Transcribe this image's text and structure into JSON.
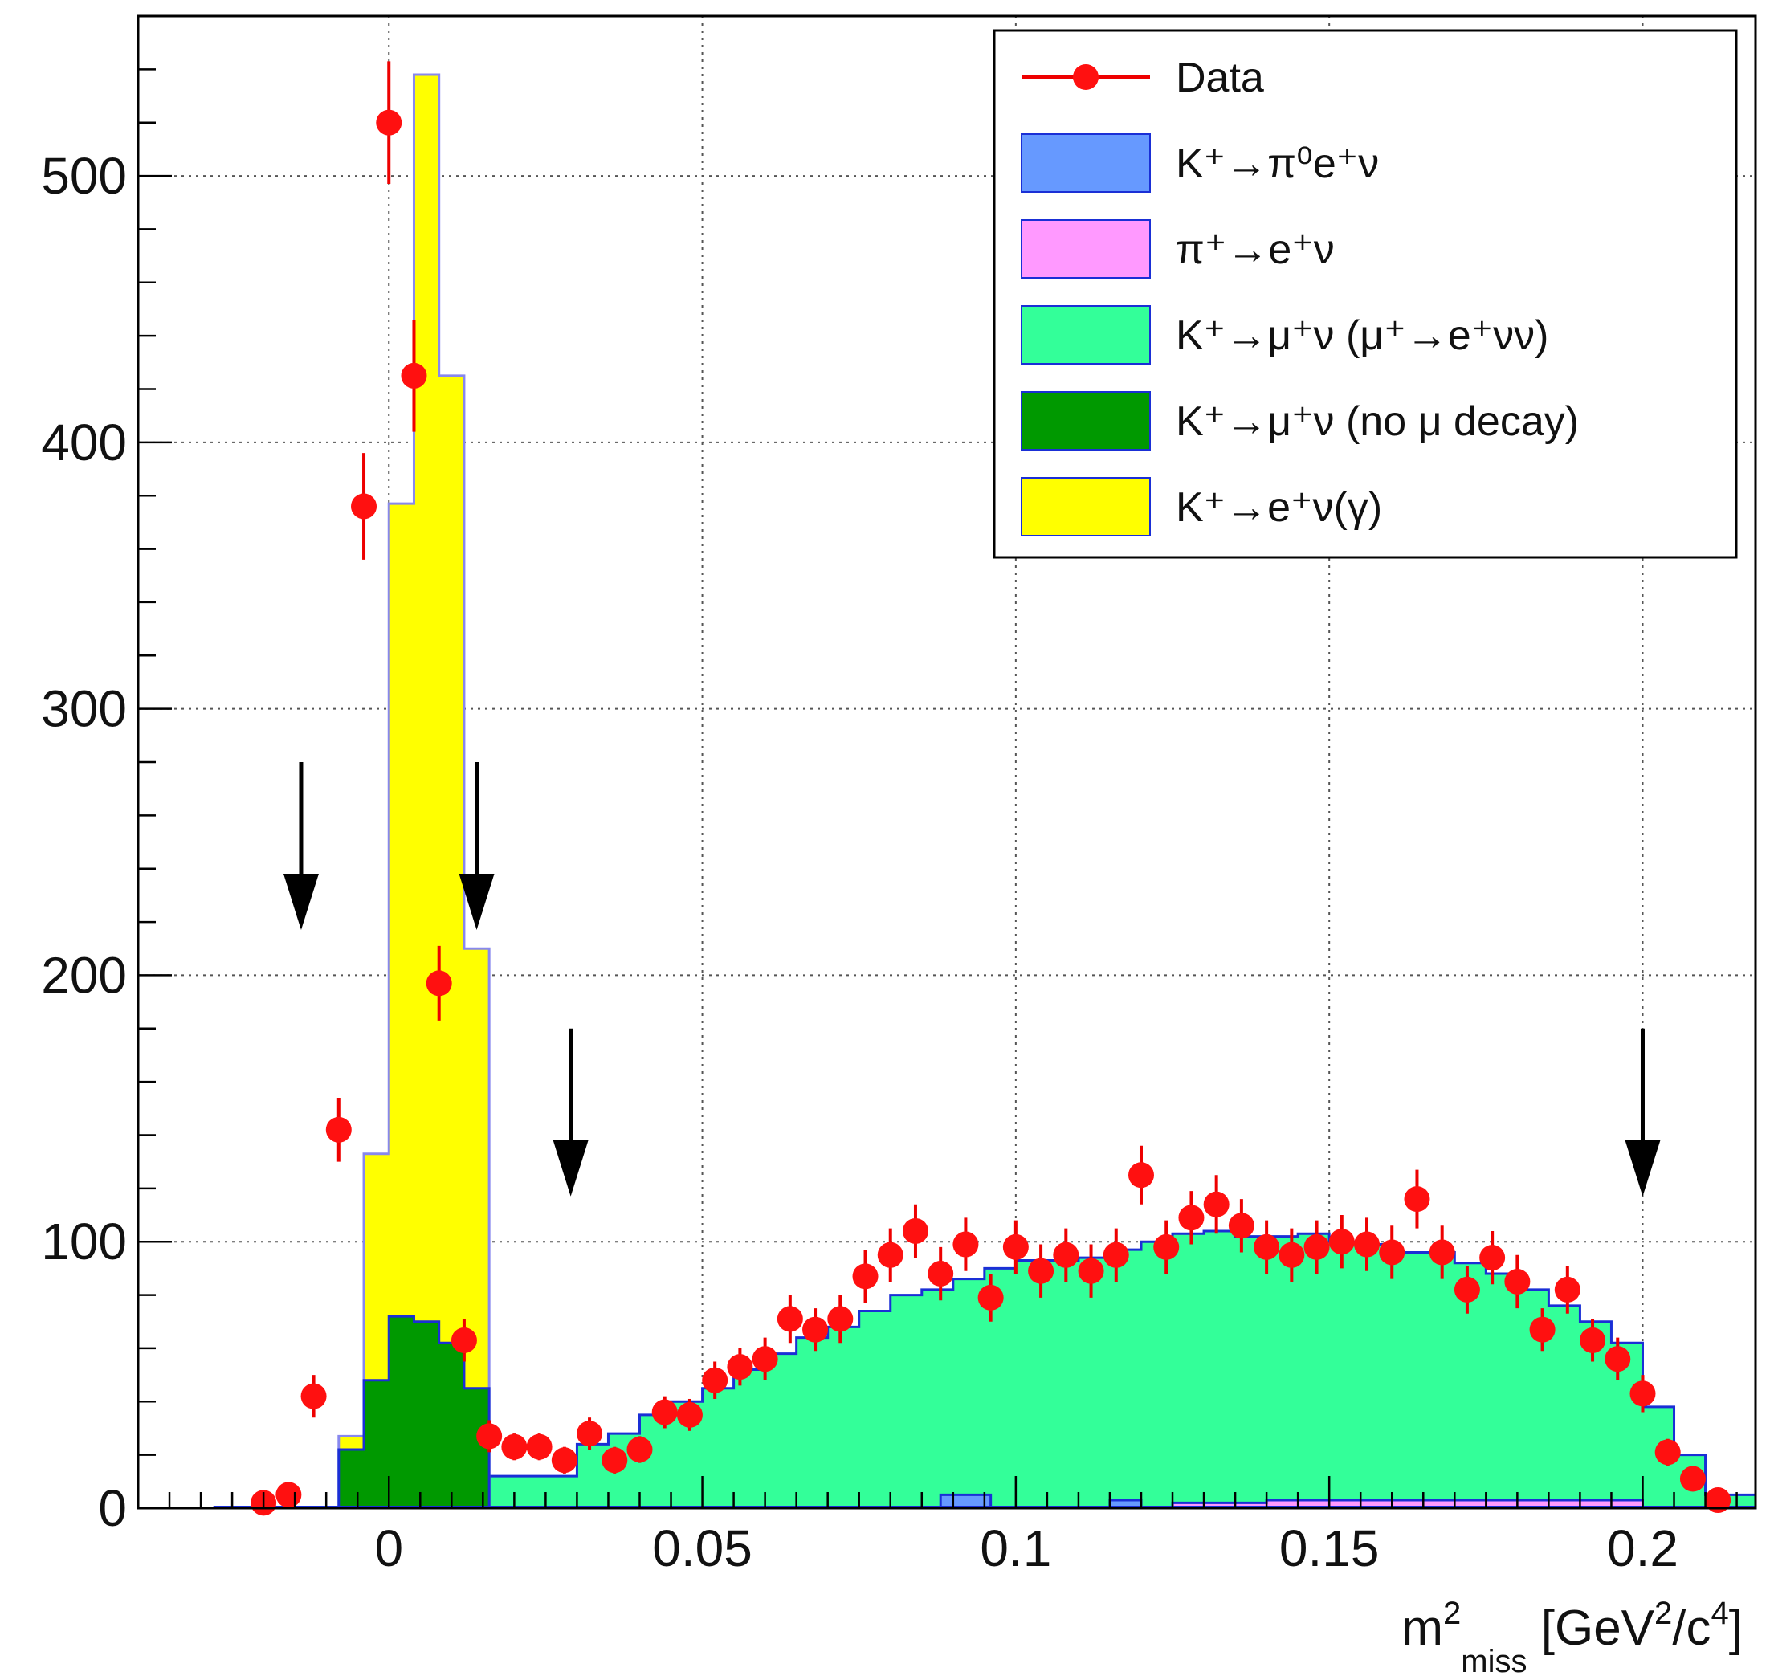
{
  "chart_data": {
    "type": "bar",
    "title": "",
    "xlabel": "m²miss [GeV²/c⁴]",
    "xlabel_parts": {
      "base": "m",
      "sup": "2",
      "sub": "miss",
      "unit_open": " [GeV",
      "unit_sup1": "2",
      "unit_mid": "/c",
      "unit_sup2": "4",
      "unit_close": "]"
    },
    "ylabel": "",
    "xlim": [
      -0.04,
      0.218
    ],
    "ylim": [
      0,
      560
    ],
    "grid": true,
    "legend_position": "top-right",
    "x_ticks": [
      {
        "value": 0,
        "label": "0"
      },
      {
        "value": 0.05,
        "label": "0.05"
      },
      {
        "value": 0.1,
        "label": "0.1"
      },
      {
        "value": 0.15,
        "label": "0.15"
      },
      {
        "value": 0.2,
        "label": "0.2"
      }
    ],
    "y_ticks": [
      {
        "value": 0,
        "label": "0"
      },
      {
        "value": 100,
        "label": "100"
      },
      {
        "value": 200,
        "label": "200"
      },
      {
        "value": 300,
        "label": "300"
      },
      {
        "value": 400,
        "label": "400"
      },
      {
        "value": 500,
        "label": "500"
      }
    ],
    "legend": [
      {
        "key": "data",
        "text": "Data",
        "color": "#ff0000",
        "style": "marker"
      },
      {
        "key": "k_pi0_e_nu",
        "text": "K⁺→π⁰e⁺ν",
        "color": "#6699ff",
        "style": "fill"
      },
      {
        "key": "pi_e_nu",
        "text": "π⁺→e⁺ν",
        "color": "#ff99ff",
        "style": "fill"
      },
      {
        "key": "k_mu_nu_decay",
        "text": "K⁺→μ⁺ν (μ⁺→e⁺νν)",
        "color": "#33ff99",
        "style": "fill"
      },
      {
        "key": "k_mu_nu_nodecay",
        "text": "K⁺→μ⁺ν (no μ decay)",
        "color": "#009900",
        "style": "fill"
      },
      {
        "key": "k_e_nu_gamma",
        "text": "K⁺→e⁺ν(γ)",
        "color": "#ffff00",
        "style": "fill"
      }
    ],
    "histograms": {
      "k_mu_nu_decay": {
        "x": [
          0.016,
          0.03,
          0.035,
          0.04,
          0.045,
          0.05,
          0.055,
          0.06,
          0.065,
          0.07,
          0.075,
          0.08,
          0.085,
          0.09,
          0.095,
          0.1,
          0.105,
          0.11,
          0.115,
          0.12,
          0.125,
          0.13,
          0.135,
          0.14,
          0.145,
          0.15,
          0.155,
          0.16,
          0.165,
          0.17,
          0.175,
          0.18,
          0.185,
          0.19,
          0.195,
          0.2,
          0.205,
          0.21,
          0.218
        ],
        "y": [
          12,
          24,
          28,
          35,
          40,
          45,
          52,
          58,
          64,
          68,
          74,
          80,
          82,
          86,
          90,
          93,
          93,
          94,
          97,
          100,
          103,
          104,
          102,
          102,
          103,
          100,
          99,
          96,
          96,
          92,
          88,
          82,
          76,
          70,
          62,
          38,
          20,
          5,
          0
        ]
      },
      "k_e_nu_gamma": {
        "x": [
          -0.016,
          -0.012,
          -0.008,
          -0.004,
          0.0,
          0.004,
          0.008,
          0.012,
          0.016
        ],
        "y": [
          0,
          0,
          27,
          133,
          377,
          538,
          425,
          210,
          35
        ]
      },
      "k_mu_nu_nodecay": {
        "x": [
          -0.012,
          -0.008,
          -0.004,
          0.0,
          0.004,
          0.008,
          0.012,
          0.016
        ],
        "y": [
          0,
          22,
          48,
          72,
          70,
          62,
          45,
          28
        ]
      },
      "k_pi0_e_nu": {
        "x": [
          0.088,
          0.096,
          0.104,
          0.115,
          0.12,
          0.125
        ],
        "y": [
          5,
          0,
          0,
          3,
          0,
          0
        ]
      },
      "pi_e_nu": {
        "x": [
          0.125,
          0.14,
          0.155,
          0.17,
          0.185,
          0.2
        ],
        "y": [
          2,
          3,
          3,
          3,
          3,
          2
        ]
      }
    },
    "data_points": {
      "x": [
        -0.02,
        -0.016,
        -0.012,
        -0.008,
        -0.004,
        0.0,
        0.004,
        0.008,
        0.012,
        0.016,
        0.02,
        0.024,
        0.028,
        0.032,
        0.036,
        0.04,
        0.044,
        0.048,
        0.052,
        0.056,
        0.06,
        0.064,
        0.068,
        0.072,
        0.076,
        0.08,
        0.084,
        0.088,
        0.092,
        0.096,
        0.1,
        0.104,
        0.108,
        0.112,
        0.116,
        0.12,
        0.124,
        0.128,
        0.132,
        0.136,
        0.14,
        0.144,
        0.148,
        0.152,
        0.156,
        0.16,
        0.164,
        0.168,
        0.172,
        0.176,
        0.18,
        0.184,
        0.188,
        0.192,
        0.196,
        0.2,
        0.204,
        0.208,
        0.212
      ],
      "y": [
        2,
        5,
        42,
        142,
        376,
        520,
        425,
        197,
        63,
        27,
        23,
        23,
        18,
        28,
        18,
        22,
        36,
        35,
        48,
        53,
        56,
        71,
        67,
        71,
        87,
        95,
        104,
        88,
        99,
        79,
        98,
        89,
        95,
        89,
        95,
        125,
        98,
        109,
        114,
        106,
        98,
        95,
        98,
        100,
        99,
        96,
        116,
        96,
        82,
        94,
        85,
        67,
        82,
        63,
        56,
        43,
        21,
        11,
        3
      ],
      "err": [
        2,
        3,
        8,
        12,
        20,
        23,
        21,
        14,
        8,
        6,
        5,
        5,
        5,
        6,
        5,
        5,
        6,
        6,
        7,
        7,
        8,
        9,
        8,
        9,
        10,
        10,
        10,
        10,
        10,
        9,
        10,
        10,
        10,
        10,
        10,
        11,
        10,
        10,
        11,
        10,
        10,
        10,
        10,
        10,
        10,
        10,
        11,
        10,
        9,
        10,
        10,
        8,
        9,
        8,
        8,
        7,
        5,
        4,
        2
      ]
    },
    "arrows": [
      {
        "x": -0.014,
        "y_top": 280,
        "y_tip": 217
      },
      {
        "x": 0.014,
        "y_top": 280,
        "y_tip": 217
      },
      {
        "x": 0.029,
        "y_top": 180,
        "y_tip": 117
      },
      {
        "x": 0.2,
        "y_top": 180,
        "y_tip": 117
      }
    ]
  }
}
